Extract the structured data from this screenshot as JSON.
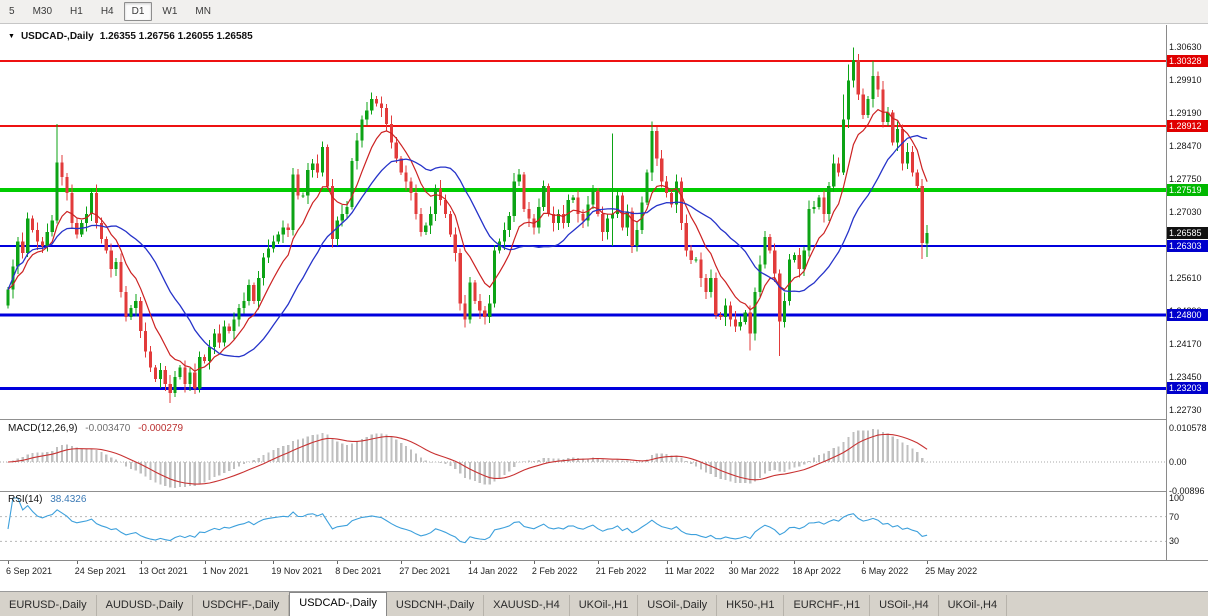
{
  "toolbar": {
    "timeframes": [
      "5",
      "M30",
      "H1",
      "H4",
      "D1",
      "W1",
      "MN"
    ],
    "active": "D1"
  },
  "header": {
    "dropdown_icon": "▼",
    "title": "USDCAD-,Daily",
    "ohlc": "1.26355 1.26756 1.26055 1.26585"
  },
  "price_axis": {
    "grid_labels": [
      "1.30630",
      "1.29910",
      "1.29190",
      "1.28470",
      "1.27750",
      "1.27030",
      "1.25610",
      "1.24890",
      "1.24170",
      "1.23450",
      "1.22730"
    ],
    "tags": [
      {
        "text": "1.30328",
        "price": 1.30328,
        "bg": "#e00000",
        "name": "resistance-price-tag"
      },
      {
        "text": "1.28912",
        "price": 1.28912,
        "bg": "#e00000",
        "name": "resistance-price-tag"
      },
      {
        "text": "1.27519",
        "price": 1.27519,
        "bg": "#00b800",
        "name": "level-price-tag"
      },
      {
        "text": "1.26585",
        "price": 1.26585,
        "bg": "#111111",
        "name": "current-price-tag"
      },
      {
        "text": "1.26303",
        "price": 1.26303,
        "bg": "#0000cc",
        "name": "support-price-tag"
      },
      {
        "text": "1.24800",
        "price": 1.248,
        "bg": "#0000cc",
        "name": "support-price-tag"
      },
      {
        "text": "1.23203",
        "price": 1.23203,
        "bg": "#0000cc",
        "name": "support-price-tag"
      }
    ]
  },
  "hlines": [
    {
      "price": 1.30328,
      "color": "#ee1111",
      "width": 2
    },
    {
      "price": 1.28912,
      "color": "#ee1111",
      "width": 2
    },
    {
      "price": 1.27519,
      "color": "#00cc00",
      "width": 4
    },
    {
      "price": 1.26303,
      "color": "#0000dd",
      "width": 2
    },
    {
      "price": 1.248,
      "color": "#0000dd",
      "width": 3
    },
    {
      "price": 1.23203,
      "color": "#0000dd",
      "width": 3
    }
  ],
  "indicators": {
    "macd": {
      "label": "MACD(12,26,9)",
      "main_value": "-0.003470",
      "signal_value": "-0.000279",
      "axis_labels": [
        {
          "text": "0.010578",
          "value": 0.010578
        },
        {
          "text": "0.00",
          "value": 0
        },
        {
          "text": "-0.00896",
          "value": -0.00896
        }
      ]
    },
    "rsi": {
      "label": "RSI(14)",
      "value": "38.4326",
      "axis_labels": [
        {
          "text": "100",
          "value": 100
        },
        {
          "text": "70",
          "value": 70
        },
        {
          "text": "30",
          "value": 30
        }
      ],
      "levels": [
        70,
        30
      ]
    }
  },
  "time_axis": [
    {
      "bar": 0,
      "text": "6 Sep 2021"
    },
    {
      "bar": 14,
      "text": "24 Sep 2021"
    },
    {
      "bar": 27,
      "text": "13 Oct 2021"
    },
    {
      "bar": 40,
      "text": "1 Nov 2021"
    },
    {
      "bar": 54,
      "text": "19 Nov 2021"
    },
    {
      "bar": 67,
      "text": "8 Dec 2021"
    },
    {
      "bar": 80,
      "text": "27 Dec 2021"
    },
    {
      "bar": 94,
      "text": "14 Jan 2022"
    },
    {
      "bar": 107,
      "text": "2 Feb 2022"
    },
    {
      "bar": 120,
      "text": "21 Feb 2022"
    },
    {
      "bar": 134,
      "text": "11 Mar 2022"
    },
    {
      "bar": 147,
      "text": "30 Mar 2022"
    },
    {
      "bar": 160,
      "text": "18 Apr 2022"
    },
    {
      "bar": 174,
      "text": "6 May 2022"
    },
    {
      "bar": 187,
      "text": "25 May 2022"
    }
  ],
  "tabs": {
    "items": [
      "EURUSD-,Daily",
      "AUDUSD-,Daily",
      "USDCHF-,Daily",
      "USDCAD-,Daily",
      "USDCNH-,Daily",
      "XAUUSD-,H4",
      "UKOil-,H1",
      "USOil-,Daily",
      "HK50-,H1",
      "EURCHF-,H1",
      "USOil-,H4",
      "UKOil-,H4"
    ],
    "active": "USDCAD-,Daily"
  },
  "colors": {
    "candle_up": "#0ca315",
    "candle_down": "#e23b3b",
    "ma_fast": "#cc2222",
    "ma_slow": "#2633c9",
    "macd_hist": "#c0c0c0",
    "macd_signal": "#c83232",
    "rsi_line": "#3da0dc",
    "level_red": "#ee1111",
    "level_green": "#00cc00",
    "level_blue": "#0000dd"
  },
  "chart_data": {
    "type": "candlestick",
    "symbol": "USDCAD",
    "timeframe": "Daily",
    "title": "USDCAD-,Daily",
    "last_bar": {
      "open": 1.26355,
      "high": 1.26756,
      "low": 1.26055,
      "close": 1.26585
    },
    "y_axis_range": [
      1.2256,
      1.3104
    ],
    "horizontal_levels": [
      1.30328,
      1.28912,
      1.27519,
      1.26303,
      1.248,
      1.23203
    ],
    "macd_params": [
      12,
      26,
      9
    ],
    "macd_current": [
      -0.00347,
      -0.000279
    ],
    "macd_axis_range": [
      -0.00896,
      0.010578
    ],
    "rsi_period": 14,
    "rsi_current": 38.4326,
    "rsi_levels": [
      70,
      30
    ],
    "overlays": {
      "ma_fast": {
        "type": "ema",
        "period": 9
      },
      "ma_slow": {
        "type": "sma",
        "period": 21
      }
    },
    "closes": [
      1.2535,
      1.2585,
      1.264,
      1.2615,
      1.269,
      1.2665,
      1.264,
      1.263,
      1.266,
      1.2685,
      1.2812,
      1.278,
      1.2745,
      1.268,
      1.2655,
      1.268,
      1.27,
      1.2745,
      1.268,
      1.2645,
      1.262,
      1.258,
      1.2595,
      1.253,
      1.2475,
      1.2495,
      1.251,
      1.2445,
      1.24,
      1.2365,
      1.234,
      1.236,
      1.233,
      1.231,
      1.2345,
      1.2365,
      1.233,
      1.2355,
      1.232,
      1.2388,
      1.238,
      1.241,
      1.244,
      1.242,
      1.2455,
      1.2445,
      1.247,
      1.2495,
      1.251,
      1.2545,
      1.251,
      1.256,
      1.2605,
      1.2625,
      1.264,
      1.2655,
      1.267,
      1.2665,
      1.2785,
      1.274,
      1.274,
      1.2795,
      1.281,
      1.279,
      1.2845,
      1.276,
      1.2645,
      1.2685,
      1.27,
      1.2715,
      1.2815,
      1.286,
      1.2905,
      1.2925,
      1.295,
      1.294,
      1.293,
      1.2895,
      1.2855,
      1.282,
      1.279,
      1.277,
      1.2745,
      1.27,
      1.266,
      1.2675,
      1.27,
      1.2755,
      1.273,
      1.27,
      1.2655,
      1.2615,
      1.2505,
      1.247,
      1.255,
      1.251,
      1.249,
      1.2475,
      1.2505,
      1.262,
      1.264,
      1.2665,
      1.2695,
      1.277,
      1.2785,
      1.271,
      1.269,
      1.267,
      1.2715,
      1.276,
      1.27,
      1.268,
      1.27,
      1.268,
      1.273,
      1.2735,
      1.27,
      1.2685,
      1.272,
      1.275,
      1.27,
      1.266,
      1.269,
      1.27,
      1.274,
      1.267,
      1.2705,
      1.263,
      1.2665,
      1.2725,
      1.279,
      1.288,
      1.282,
      1.277,
      1.2745,
      1.272,
      1.277,
      1.268,
      1.262,
      1.26,
      1.26,
      1.256,
      1.253,
      1.256,
      1.248,
      1.2475,
      1.25,
      1.247,
      1.2455,
      1.2465,
      1.2485,
      1.244,
      1.253,
      1.259,
      1.265,
      1.262,
      1.257,
      1.2465,
      1.251,
      1.26,
      1.261,
      1.258,
      1.262,
      1.271,
      1.2715,
      1.2735,
      1.27,
      1.276,
      1.281,
      1.279,
      1.2905,
      1.299,
      1.3035,
      1.296,
      1.2915,
      1.295,
      1.3,
      1.297,
      1.29,
      1.292,
      1.2855,
      1.2885,
      1.281,
      1.2835,
      1.279,
      1.276,
      1.2636,
      1.26585
    ],
    "special_bars": {
      "10": {
        "h": 1.2895
      },
      "33": {
        "l": 1.2288
      },
      "58": {
        "h": 1.28
      },
      "74": {
        "h": 1.2964
      },
      "93": {
        "l": 1.2453
      },
      "123": {
        "h": 1.2875,
        "l": 1.263
      },
      "131": {
        "h": 1.2901
      },
      "151": {
        "l": 1.2403
      },
      "157": {
        "l": 1.239
      },
      "170": {
        "h": 1.296
      },
      "171": {
        "h": 1.3025
      },
      "172": {
        "h": 1.3062
      },
      "173": {
        "h": 1.3048
      },
      "176": {
        "h": 1.3033
      },
      "186": {
        "l": 1.2602
      },
      "187": {
        "o": 1.26355,
        "h": 1.26756,
        "l": 1.26055
      }
    }
  }
}
